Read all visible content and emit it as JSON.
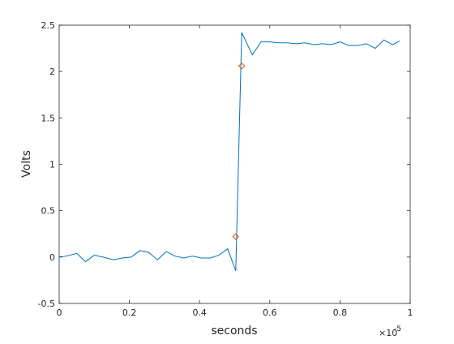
{
  "chart_data": {
    "type": "line",
    "xlabel": "seconds",
    "ylabel": "Volts",
    "x_exponent_label": "×10",
    "x_exponent_power": "-5",
    "xlim": [
      0,
      1
    ],
    "ylim": [
      -0.5,
      2.5
    ],
    "x_ticks": [
      0,
      0.2,
      0.4,
      0.6,
      0.8,
      1
    ],
    "x_tick_labels": [
      "0",
      "0.2",
      "0.4",
      "0.6",
      "0.8",
      "1"
    ],
    "y_ticks": [
      -0.5,
      0,
      0.5,
      1,
      1.5,
      2,
      2.5
    ],
    "y_tick_labels": [
      "-0.5",
      "0",
      "0.5",
      "1",
      "1.5",
      "2",
      "2.5"
    ],
    "grid": false,
    "series": [
      {
        "color": "#0072bd",
        "x": [
          0,
          0.02,
          0.05,
          0.075,
          0.1,
          0.125,
          0.155,
          0.18,
          0.205,
          0.23,
          0.255,
          0.28,
          0.305,
          0.33,
          0.355,
          0.38,
          0.405,
          0.43,
          0.455,
          0.48,
          0.503,
          0.52,
          0.55,
          0.575,
          0.6,
          0.625,
          0.65,
          0.675,
          0.7,
          0.725,
          0.75,
          0.775,
          0.8,
          0.825,
          0.85,
          0.875,
          0.9,
          0.925,
          0.95,
          0.97
        ],
        "y": [
          0.0,
          0.01,
          0.04,
          -0.05,
          0.02,
          0.0,
          -0.03,
          -0.01,
          0.0,
          0.07,
          0.05,
          -0.03,
          0.06,
          0.01,
          -0.01,
          0.01,
          -0.01,
          -0.01,
          0.02,
          0.09,
          -0.15,
          2.42,
          2.18,
          2.32,
          2.32,
          2.31,
          2.31,
          2.3,
          2.31,
          2.29,
          2.3,
          2.29,
          2.32,
          2.28,
          2.28,
          2.3,
          2.25,
          2.34,
          2.29,
          2.33
        ]
      }
    ],
    "markers": [
      {
        "shape": "diamond",
        "color": "#d95319",
        "x": 0.503,
        "y": 0.22
      },
      {
        "shape": "diamond",
        "color": "#d95319",
        "x": 0.52,
        "y": 2.06
      }
    ]
  }
}
